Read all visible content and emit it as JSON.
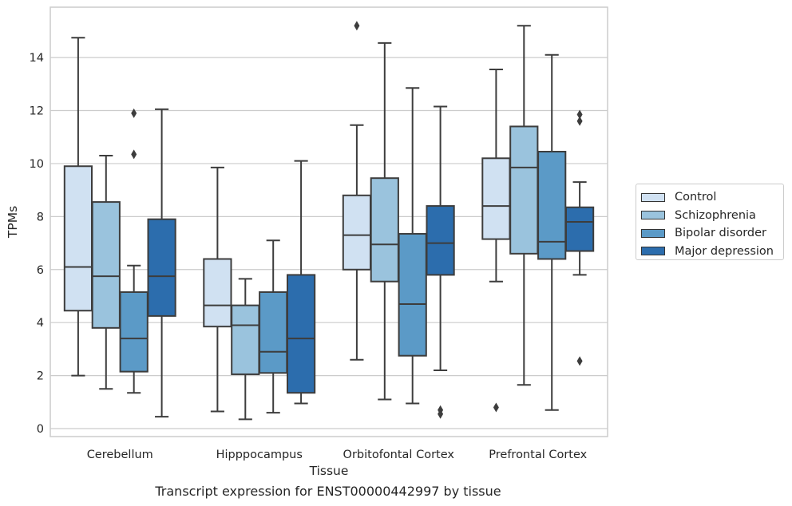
{
  "chart_data": {
    "type": "box",
    "xlabel": "Tissue",
    "ylabel": "TPMs",
    "ylim": [
      -0.3,
      15.9
    ],
    "yticks": [
      0,
      2,
      4,
      6,
      8,
      10,
      12,
      14
    ],
    "grid": "horizontal",
    "legend_position": "right",
    "categories": [
      "Cerebellum",
      "Hipppocampus",
      "Orbitofontal Cortex",
      "Prefrontal Cortex"
    ],
    "series": [
      {
        "name": "Control",
        "color": "#d0e1f2",
        "boxes": [
          {
            "whislo": 2.0,
            "q1": 4.45,
            "med": 6.1,
            "q3": 9.9,
            "whishi": 14.75,
            "fliers": []
          },
          {
            "whislo": 0.65,
            "q1": 3.85,
            "med": 4.65,
            "q3": 6.4,
            "whishi": 9.85,
            "fliers": []
          },
          {
            "whislo": 2.6,
            "q1": 6.0,
            "med": 7.3,
            "q3": 8.8,
            "whishi": 11.45,
            "fliers": [
              15.2
            ]
          },
          {
            "whislo": 5.55,
            "q1": 7.15,
            "med": 8.4,
            "q3": 10.2,
            "whishi": 13.55,
            "fliers": [
              0.8
            ]
          }
        ]
      },
      {
        "name": "Schizophrenia",
        "color": "#9ac3dd",
        "boxes": [
          {
            "whislo": 1.5,
            "q1": 3.8,
            "med": 5.75,
            "q3": 8.55,
            "whishi": 10.3,
            "fliers": []
          },
          {
            "whislo": 0.35,
            "q1": 2.05,
            "med": 3.9,
            "q3": 4.65,
            "whishi": 5.65,
            "fliers": []
          },
          {
            "whislo": 1.1,
            "q1": 5.55,
            "med": 6.95,
            "q3": 9.45,
            "whishi": 14.55,
            "fliers": []
          },
          {
            "whislo": 1.65,
            "q1": 6.6,
            "med": 9.85,
            "q3": 11.4,
            "whishi": 15.2,
            "fliers": []
          }
        ]
      },
      {
        "name": "Bipolar disorder",
        "color": "#5b9ac7",
        "boxes": [
          {
            "whislo": 1.35,
            "q1": 2.15,
            "med": 3.4,
            "q3": 5.15,
            "whishi": 6.15,
            "fliers": [
              11.9,
              10.35
            ]
          },
          {
            "whislo": 0.6,
            "q1": 2.1,
            "med": 2.9,
            "q3": 5.15,
            "whishi": 7.1,
            "fliers": []
          },
          {
            "whislo": 0.95,
            "q1": 2.75,
            "med": 4.7,
            "q3": 7.35,
            "whishi": 12.85,
            "fliers": []
          },
          {
            "whislo": 0.7,
            "q1": 6.4,
            "med": 7.05,
            "q3": 10.45,
            "whishi": 14.1,
            "fliers": []
          }
        ]
      },
      {
        "name": "Major depression",
        "color": "#2c6dad",
        "boxes": [
          {
            "whislo": 0.45,
            "q1": 4.25,
            "med": 5.75,
            "q3": 7.9,
            "whishi": 12.05,
            "fliers": []
          },
          {
            "whislo": 0.95,
            "q1": 1.35,
            "med": 3.4,
            "q3": 5.8,
            "whishi": 10.1,
            "fliers": []
          },
          {
            "whislo": 2.2,
            "q1": 5.8,
            "med": 7.0,
            "q3": 8.4,
            "whishi": 12.15,
            "fliers": [
              0.7,
              0.55
            ]
          },
          {
            "whislo": 5.8,
            "q1": 6.7,
            "med": 7.8,
            "q3": 8.35,
            "whishi": 9.3,
            "fliers": [
              11.85,
              11.6,
              2.55
            ]
          }
        ]
      }
    ],
    "caption": "Transcript expression for ENST00000442997 by tissue"
  }
}
